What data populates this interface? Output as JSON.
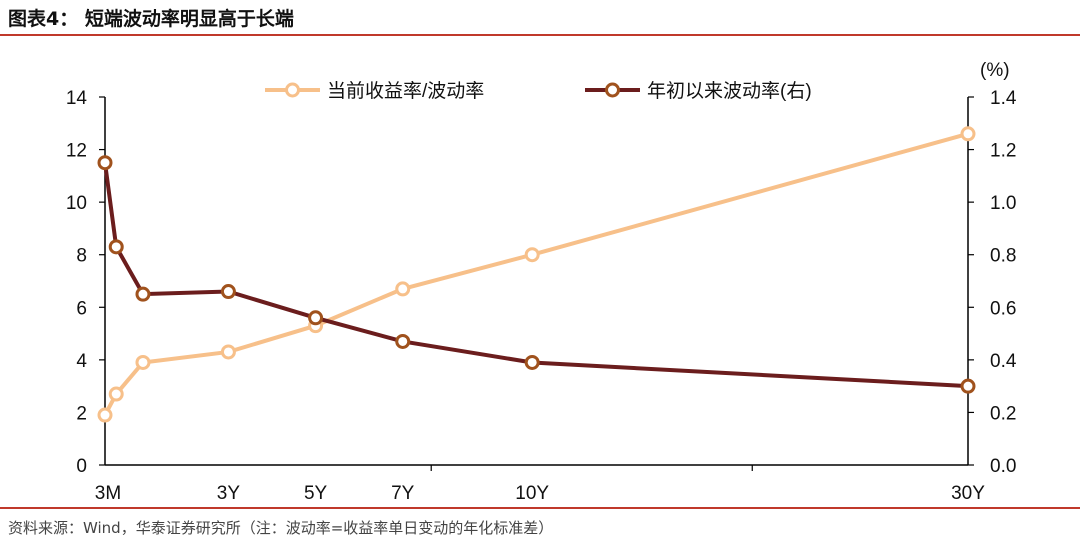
{
  "header": {
    "title": "图表4： 短端波动率明显高于长端"
  },
  "footer": {
    "source": "资料来源：Wind，华泰证券研究所（注：波动率=收益率单日变动的年化标准差）"
  },
  "colors": {
    "series1": "#f7c08a",
    "series2": "#6b1d1d",
    "rule": "#c0392b"
  },
  "chart_data": {
    "type": "line",
    "x": [
      0.25,
      0.5,
      1,
      3,
      5,
      7,
      10,
      30
    ],
    "x_tick_labels": [
      {
        "x": 0.25,
        "label": "3M"
      },
      {
        "x": 3,
        "label": "3Y"
      },
      {
        "x": 5,
        "label": "5Y"
      },
      {
        "x": 7,
        "label": "7Y"
      },
      {
        "x": 10,
        "label": "10Y"
      },
      {
        "x": 30,
        "label": "30Y"
      }
    ],
    "y_left": {
      "ylim": [
        0,
        14
      ],
      "ticks": [
        "0",
        "2",
        "4",
        "6",
        "8",
        "10",
        "12",
        "14"
      ]
    },
    "y_right": {
      "ylim": [
        0,
        1.4
      ],
      "ticks": [
        "0.0",
        "0.2",
        "0.4",
        "0.6",
        "0.8",
        "1.0",
        "1.2",
        "1.4"
      ],
      "unit": "(%)"
    },
    "legend_position": "top",
    "series": [
      {
        "name": "当前收益率/波动率",
        "axis": "left",
        "values": [
          1.9,
          2.7,
          3.9,
          4.3,
          5.3,
          6.7,
          8.0,
          12.6
        ]
      },
      {
        "name": "年初以来波动率(右)",
        "axis": "right",
        "values": [
          1.15,
          0.83,
          0.65,
          0.66,
          0.56,
          0.47,
          0.39,
          0.3
        ]
      }
    ]
  }
}
